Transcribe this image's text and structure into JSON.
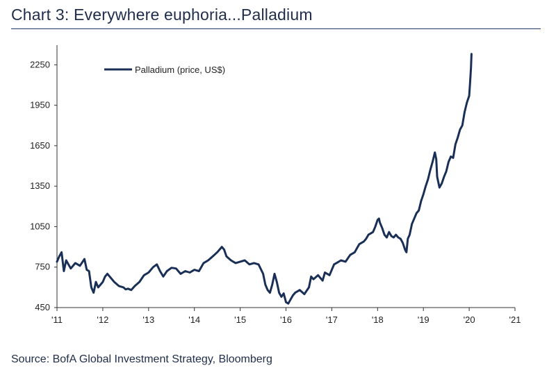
{
  "title": "Chart 3: Everywhere euphoria...Palladium",
  "source": "Source: BofA Global Investment Strategy, Bloomberg",
  "colors": {
    "series": "#1a2f55",
    "axis": "#333333",
    "rule": "#1f3864"
  },
  "chart_data": {
    "type": "line",
    "title": "Chart 3: Everywhere euphoria...Palladium",
    "xlabel": "",
    "ylabel": "",
    "x_ticks": [
      "'11",
      "'12",
      "'13",
      "'14",
      "'15",
      "'16",
      "'17",
      "'18",
      "'19",
      "'20",
      "'21"
    ],
    "xlim": [
      2011,
      2021
    ],
    "y_ticks": [
      450,
      750,
      1050,
      1350,
      1650,
      1950,
      2250
    ],
    "ylim": [
      450,
      2370
    ],
    "grid": false,
    "legend_position": "top-left",
    "series": [
      {
        "name": "Palladium (price, US$)",
        "color": "#1a2f55",
        "points": [
          [
            2011.0,
            790
          ],
          [
            2011.05,
            830
          ],
          [
            2011.1,
            860
          ],
          [
            2011.15,
            720
          ],
          [
            2011.2,
            800
          ],
          [
            2011.3,
            740
          ],
          [
            2011.4,
            780
          ],
          [
            2011.5,
            760
          ],
          [
            2011.6,
            810
          ],
          [
            2011.65,
            730
          ],
          [
            2011.7,
            720
          ],
          [
            2011.75,
            600
          ],
          [
            2011.8,
            560
          ],
          [
            2011.85,
            640
          ],
          [
            2011.9,
            600
          ],
          [
            2011.95,
            620
          ],
          [
            2012.0,
            640
          ],
          [
            2012.05,
            680
          ],
          [
            2012.1,
            700
          ],
          [
            2012.15,
            680
          ],
          [
            2012.25,
            640
          ],
          [
            2012.35,
            610
          ],
          [
            2012.45,
            600
          ],
          [
            2012.5,
            585
          ],
          [
            2012.55,
            590
          ],
          [
            2012.62,
            580
          ],
          [
            2012.7,
            610
          ],
          [
            2012.8,
            640
          ],
          [
            2012.9,
            690
          ],
          [
            2013.0,
            710
          ],
          [
            2013.1,
            750
          ],
          [
            2013.18,
            770
          ],
          [
            2013.25,
            720
          ],
          [
            2013.32,
            680
          ],
          [
            2013.4,
            720
          ],
          [
            2013.5,
            745
          ],
          [
            2013.6,
            740
          ],
          [
            2013.7,
            700
          ],
          [
            2013.8,
            720
          ],
          [
            2013.9,
            710
          ],
          [
            2014.0,
            730
          ],
          [
            2014.1,
            720
          ],
          [
            2014.2,
            780
          ],
          [
            2014.3,
            800
          ],
          [
            2014.4,
            830
          ],
          [
            2014.5,
            860
          ],
          [
            2014.55,
            880
          ],
          [
            2014.6,
            900
          ],
          [
            2014.65,
            880
          ],
          [
            2014.7,
            830
          ],
          [
            2014.8,
            800
          ],
          [
            2014.9,
            780
          ],
          [
            2015.0,
            790
          ],
          [
            2015.1,
            800
          ],
          [
            2015.2,
            770
          ],
          [
            2015.3,
            780
          ],
          [
            2015.4,
            770
          ],
          [
            2015.5,
            700
          ],
          [
            2015.55,
            620
          ],
          [
            2015.6,
            580
          ],
          [
            2015.65,
            560
          ],
          [
            2015.7,
            620
          ],
          [
            2015.75,
            700
          ],
          [
            2015.8,
            640
          ],
          [
            2015.85,
            560
          ],
          [
            2015.9,
            530
          ],
          [
            2015.95,
            555
          ],
          [
            2016.0,
            490
          ],
          [
            2016.05,
            480
          ],
          [
            2016.1,
            510
          ],
          [
            2016.15,
            540
          ],
          [
            2016.2,
            560
          ],
          [
            2016.3,
            580
          ],
          [
            2016.4,
            550
          ],
          [
            2016.5,
            600
          ],
          [
            2016.55,
            680
          ],
          [
            2016.6,
            660
          ],
          [
            2016.7,
            690
          ],
          [
            2016.8,
            650
          ],
          [
            2016.85,
            710
          ],
          [
            2016.9,
            700
          ],
          [
            2016.95,
            690
          ],
          [
            2017.0,
            730
          ],
          [
            2017.05,
            770
          ],
          [
            2017.1,
            780
          ],
          [
            2017.2,
            800
          ],
          [
            2017.3,
            790
          ],
          [
            2017.4,
            840
          ],
          [
            2017.5,
            860
          ],
          [
            2017.55,
            890
          ],
          [
            2017.6,
            920
          ],
          [
            2017.7,
            940
          ],
          [
            2017.75,
            960
          ],
          [
            2017.8,
            990
          ],
          [
            2017.85,
            1000
          ],
          [
            2017.9,
            1010
          ],
          [
            2017.95,
            1050
          ],
          [
            2018.0,
            1100
          ],
          [
            2018.03,
            1110
          ],
          [
            2018.05,
            1080
          ],
          [
            2018.1,
            1040
          ],
          [
            2018.15,
            990
          ],
          [
            2018.2,
            970
          ],
          [
            2018.25,
            1010
          ],
          [
            2018.3,
            980
          ],
          [
            2018.35,
            970
          ],
          [
            2018.4,
            990
          ],
          [
            2018.45,
            970
          ],
          [
            2018.5,
            960
          ],
          [
            2018.55,
            930
          ],
          [
            2018.6,
            880
          ],
          [
            2018.63,
            860
          ],
          [
            2018.66,
            960
          ],
          [
            2018.7,
            990
          ],
          [
            2018.75,
            1070
          ],
          [
            2018.8,
            1110
          ],
          [
            2018.85,
            1150
          ],
          [
            2018.9,
            1170
          ],
          [
            2018.95,
            1240
          ],
          [
            2019.0,
            1290
          ],
          [
            2019.05,
            1350
          ],
          [
            2019.1,
            1400
          ],
          [
            2019.15,
            1470
          ],
          [
            2019.2,
            1530
          ],
          [
            2019.25,
            1600
          ],
          [
            2019.28,
            1550
          ],
          [
            2019.3,
            1420
          ],
          [
            2019.35,
            1340
          ],
          [
            2019.4,
            1370
          ],
          [
            2019.45,
            1420
          ],
          [
            2019.5,
            1460
          ],
          [
            2019.55,
            1530
          ],
          [
            2019.6,
            1570
          ],
          [
            2019.65,
            1560
          ],
          [
            2019.7,
            1660
          ],
          [
            2019.75,
            1710
          ],
          [
            2019.8,
            1770
          ],
          [
            2019.85,
            1800
          ],
          [
            2019.9,
            1900
          ],
          [
            2019.95,
            1970
          ],
          [
            2020.0,
            2020
          ],
          [
            2020.02,
            2120
          ],
          [
            2020.04,
            2230
          ],
          [
            2020.05,
            2330
          ]
        ]
      }
    ]
  }
}
